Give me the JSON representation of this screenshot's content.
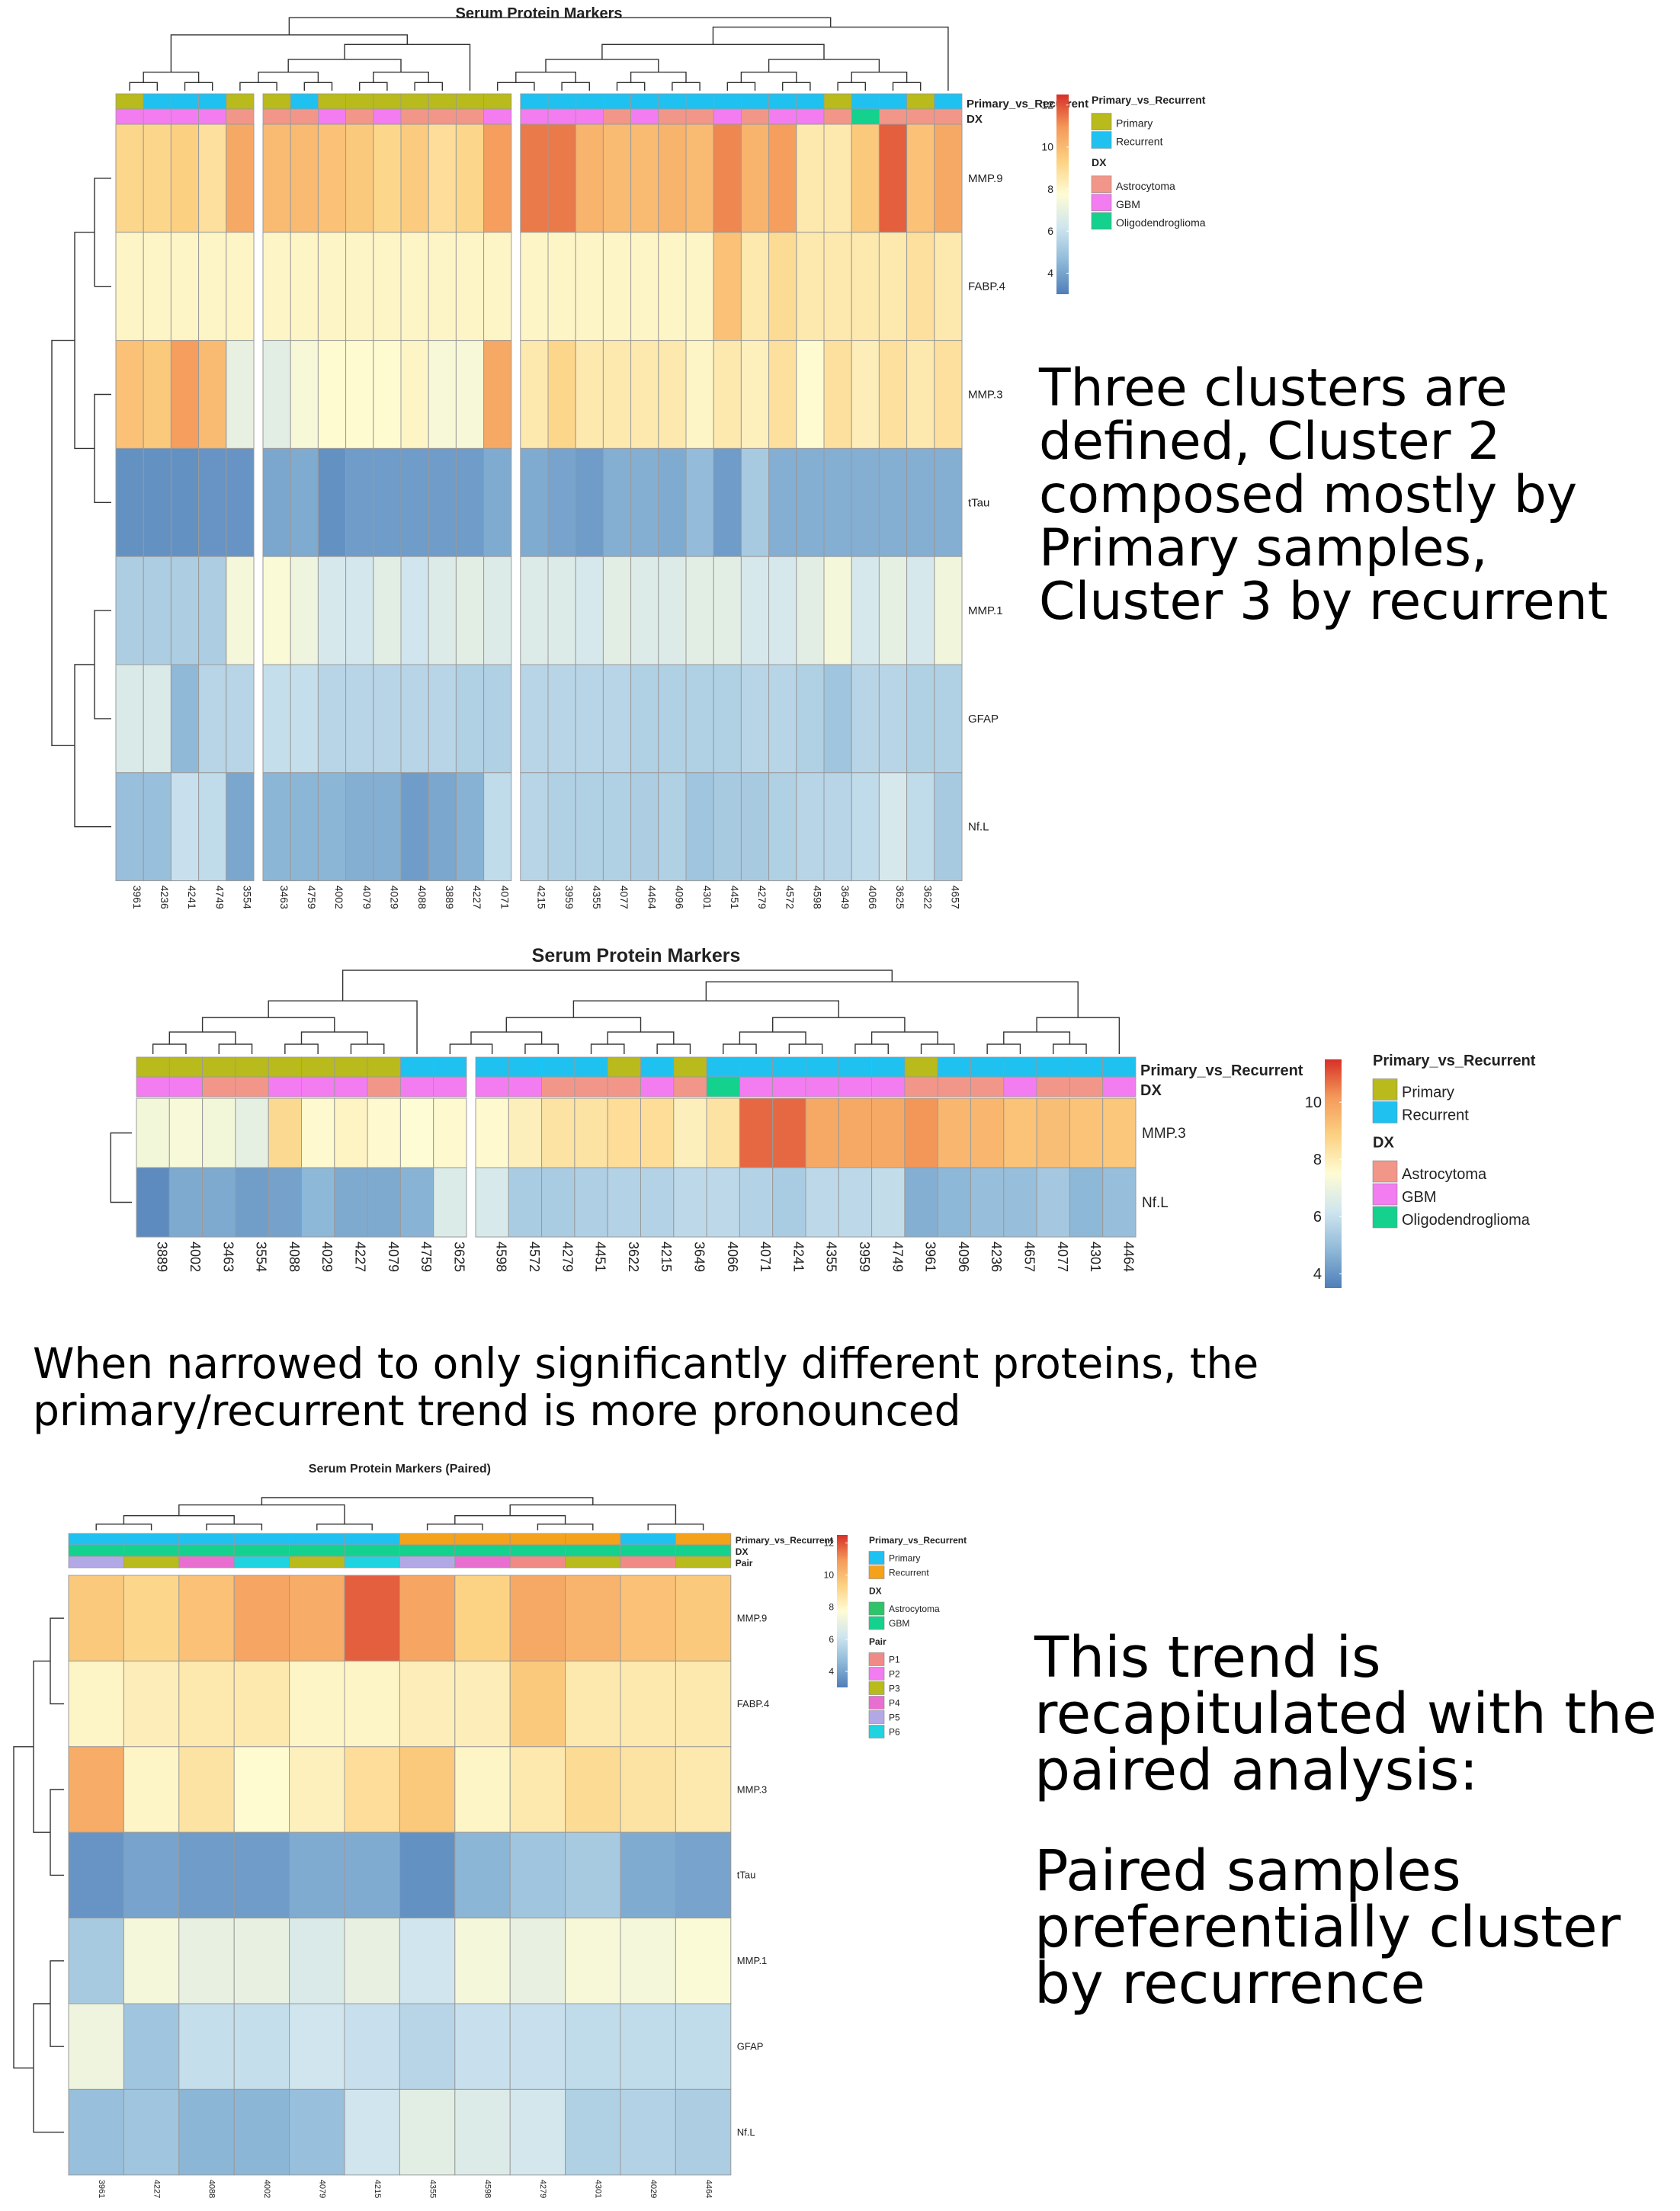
{
  "captions": {
    "top": "Three clusters are defined, Cluster 2 composed mostly by Primary samples, Cluster 3 by recurrent",
    "middle": "When narrowed to only significantly different proteins, the primary/recurrent trend is more pronounced",
    "bottom_1": "This trend is recapitulated with the paired analysis:",
    "bottom_2": "Paired samples preferentially cluster by recurrence"
  },
  "colors": {
    "primary": "#B9BA1B",
    "recurrent": "#1FC1F0",
    "recurrent_paired": "#F4A21A",
    "astrocytoma": "#F2968A",
    "gbm": "#F27CF0",
    "oligodendroglioma": "#14D18E",
    "astrocytoma_paired": "#2EC46A",
    "scale": [
      "#4F7EB8",
      "#8FB9D8",
      "#CFE5EF",
      "#FEFCD4",
      "#FCD283",
      "#F49A5A",
      "#D73027"
    ]
  },
  "chart_data": [
    {
      "type": "heatmap",
      "title": "Serum Protein Markers",
      "columns": [
        "3961",
        "4236",
        "4241",
        "4749",
        "3554",
        "3463",
        "4759",
        "4002",
        "4079",
        "4029",
        "4088",
        "3889",
        "4227",
        "4071",
        "4215",
        "3959",
        "4355",
        "4077",
        "4464",
        "4096",
        "4301",
        "4451",
        "4279",
        "4572",
        "4598",
        "3649",
        "4066",
        "3625",
        "3622",
        "4657"
      ],
      "rows": [
        "MMP.9",
        "FABP.4",
        "MMP.3",
        "tTau",
        "MMP.1",
        "GFAP",
        "Nf.L"
      ],
      "gaps_after_col": [
        4,
        13
      ],
      "annotations": {
        "Primary_vs_Recurrent": [
          "Primary",
          "Recurrent",
          "Recurrent",
          "Recurrent",
          "Primary",
          "Primary",
          "Recurrent",
          "Primary",
          "Primary",
          "Primary",
          "Primary",
          "Primary",
          "Primary",
          "Primary",
          "Recurrent",
          "Recurrent",
          "Recurrent",
          "Recurrent",
          "Recurrent",
          "Recurrent",
          "Recurrent",
          "Recurrent",
          "Recurrent",
          "Recurrent",
          "Recurrent",
          "Primary",
          "Recurrent",
          "Recurrent",
          "Primary",
          "Recurrent"
        ],
        "DX": [
          "GBM",
          "GBM",
          "GBM",
          "GBM",
          "Astrocytoma",
          "Astrocytoma",
          "Astrocytoma",
          "GBM",
          "Astrocytoma",
          "GBM",
          "Astrocytoma",
          "Astrocytoma",
          "Astrocytoma",
          "GBM",
          "GBM",
          "GBM",
          "GBM",
          "Astrocytoma",
          "GBM",
          "Astrocytoma",
          "Astrocytoma",
          "GBM",
          "Astrocytoma",
          "GBM",
          "GBM",
          "Astrocytoma",
          "Oligodendroglioma",
          "Astrocytoma",
          "Astrocytoma",
          "Astrocytoma"
        ]
      },
      "values": [
        [
          9.2,
          9.2,
          9.4,
          8.8,
          10.5,
          10.0,
          10.0,
          9.8,
          9.6,
          9.2,
          9.5,
          8.9,
          9.2,
          10.8,
          11.4,
          11.4,
          10.2,
          10.0,
          10.0,
          10.2,
          10.0,
          11.2,
          10.2,
          10.8,
          8.5,
          8.5,
          9.6,
          11.8,
          9.8,
          10.5
        ],
        [
          8.0,
          8.0,
          8.0,
          8.0,
          8.0,
          8.0,
          8.0,
          8.0,
          8.0,
          8.0,
          8.0,
          8.0,
          8.0,
          8.0,
          8.0,
          8.0,
          8.0,
          8.0,
          8.0,
          8.0,
          8.0,
          9.8,
          8.5,
          9.0,
          8.5,
          8.5,
          8.5,
          8.5,
          8.8,
          8.5
        ],
        [
          9.8,
          9.6,
          10.8,
          10.0,
          7.0,
          6.8,
          7.5,
          7.8,
          7.8,
          7.8,
          8.0,
          7.5,
          7.5,
          10.5,
          8.5,
          9.2,
          8.5,
          8.5,
          8.5,
          8.5,
          8.0,
          8.5,
          8.2,
          8.8,
          7.8,
          8.8,
          8.3,
          8.8,
          8.5,
          8.8
        ],
        [
          3.5,
          3.5,
          3.5,
          3.6,
          3.6,
          4.1,
          4.2,
          3.5,
          3.8,
          3.8,
          3.8,
          3.8,
          3.8,
          4.2,
          4.2,
          4.0,
          3.8,
          4.3,
          4.3,
          4.2,
          4.7,
          3.8,
          5.2,
          4.3,
          4.3,
          4.3,
          4.3,
          4.3,
          4.3,
          4.3
        ],
        [
          5.3,
          5.3,
          5.3,
          5.3,
          7.4,
          7.6,
          7.2,
          6.4,
          6.3,
          6.8,
          6.2,
          6.6,
          6.8,
          6.6,
          6.6,
          6.6,
          6.4,
          6.8,
          6.6,
          6.6,
          6.8,
          6.8,
          6.4,
          6.4,
          6.8,
          7.4,
          6.4,
          6.9,
          6.4,
          7.3
        ],
        [
          6.5,
          6.5,
          4.6,
          5.6,
          5.6,
          5.9,
          5.9,
          5.6,
          5.6,
          5.6,
          5.6,
          5.6,
          5.4,
          5.4,
          5.6,
          5.6,
          5.6,
          5.6,
          5.4,
          5.4,
          5.4,
          5.4,
          5.6,
          5.6,
          5.4,
          5.0,
          5.6,
          5.6,
          5.4,
          5.4
        ],
        [
          4.8,
          4.8,
          6.0,
          5.8,
          4.1,
          4.5,
          4.5,
          4.5,
          4.3,
          4.3,
          3.8,
          4.1,
          4.4,
          5.8,
          5.6,
          5.4,
          5.4,
          5.4,
          5.3,
          5.4,
          5.0,
          5.2,
          5.2,
          5.4,
          5.6,
          5.6,
          5.8,
          6.4,
          5.8,
          5.2
        ]
      ],
      "scale_ticks": [
        4,
        6,
        8,
        10,
        12
      ],
      "legend": {
        "Primary_vs_Recurrent": [
          "Primary",
          "Recurrent"
        ],
        "DX": [
          "Astrocytoma",
          "GBM",
          "Oligodendroglioma"
        ]
      }
    },
    {
      "type": "heatmap",
      "title": "Serum Protein Markers",
      "columns": [
        "3889",
        "4002",
        "3463",
        "3554",
        "4088",
        "4029",
        "4227",
        "4079",
        "4759",
        "3625",
        "4598",
        "4572",
        "4279",
        "4451",
        "3622",
        "4215",
        "3649",
        "4066",
        "4071",
        "4241",
        "4355",
        "3959",
        "4749",
        "3961",
        "4096",
        "4236",
        "4657",
        "4077",
        "4301",
        "4464"
      ],
      "rows": [
        "MMP.3",
        "Nf.L"
      ],
      "gaps_after_col": [
        9
      ],
      "annotations": {
        "Primary_vs_Recurrent": [
          "Primary",
          "Primary",
          "Primary",
          "Primary",
          "Primary",
          "Primary",
          "Primary",
          "Primary",
          "Recurrent",
          "Recurrent",
          "Recurrent",
          "Recurrent",
          "Recurrent",
          "Recurrent",
          "Primary",
          "Recurrent",
          "Primary",
          "Recurrent",
          "Recurrent",
          "Recurrent",
          "Recurrent",
          "Recurrent",
          "Recurrent",
          "Primary",
          "Recurrent",
          "Recurrent",
          "Recurrent",
          "Recurrent",
          "Recurrent",
          "Recurrent"
        ],
        "DX": [
          "GBM",
          "GBM",
          "Astrocytoma",
          "Astrocytoma",
          "GBM",
          "GBM",
          "GBM",
          "Astrocytoma",
          "GBM",
          "GBM",
          "GBM",
          "GBM",
          "Astrocytoma",
          "Astrocytoma",
          "Astrocytoma",
          "GBM",
          "Astrocytoma",
          "Oligodendroglioma",
          "GBM",
          "GBM",
          "GBM",
          "GBM",
          "GBM",
          "Astrocytoma",
          "Astrocytoma",
          "Astrocytoma",
          "GBM",
          "Astrocytoma",
          "Astrocytoma",
          "GBM"
        ]
      },
      "values": [
        [
          7.2,
          7.3,
          7.2,
          6.8,
          8.6,
          7.6,
          7.8,
          7.6,
          7.5,
          7.6,
          7.6,
          7.9,
          8.3,
          8.3,
          8.5,
          8.5,
          7.9,
          8.3,
          10.8,
          10.8,
          9.8,
          9.8,
          9.8,
          10.2,
          9.5,
          9.5,
          9.2,
          9.3,
          9.2,
          9.1
        ],
        [
          3.8,
          4.5,
          4.5,
          4.2,
          4.3,
          4.8,
          4.5,
          4.5,
          4.7,
          6.5,
          6.4,
          5.4,
          5.4,
          5.5,
          5.6,
          5.6,
          5.8,
          5.8,
          5.6,
          5.4,
          5.8,
          5.8,
          5.9,
          4.6,
          4.8,
          5.0,
          5.0,
          5.3,
          4.8,
          5.0
        ]
      ],
      "scale_ticks": [
        4,
        6,
        8,
        10
      ],
      "legend": {
        "Primary_vs_Recurrent": [
          "Primary",
          "Recurrent"
        ],
        "DX": [
          "Astrocytoma",
          "GBM",
          "Oligodendroglioma"
        ]
      }
    },
    {
      "type": "heatmap",
      "title": "Serum Protein Markers (Paired)",
      "columns": [
        "3961",
        "4227",
        "4088",
        "4002",
        "4079",
        "4215",
        "4355",
        "4598",
        "4279",
        "4301",
        "4029",
        "4464"
      ],
      "rows": [
        "MMP.9",
        "FABP.4",
        "MMP.3",
        "tTau",
        "MMP.1",
        "GFAP",
        "Nf.L"
      ],
      "gaps_after_col": [],
      "annotations": {
        "Primary_vs_Recurrent": [
          "Primary",
          "Primary",
          "Primary",
          "Primary",
          "Primary",
          "Primary",
          "Recurrent",
          "Recurrent",
          "Recurrent",
          "Recurrent",
          "Primary",
          "Recurrent"
        ],
        "DX": [
          "GBM",
          "GBM",
          "GBM",
          "GBM",
          "GBM",
          "GBM",
          "GBM",
          "GBM",
          "GBM",
          "GBM",
          "GBM",
          "GBM"
        ],
        "Pair": [
          "P5",
          "P3",
          "P4",
          "P6",
          "P3",
          "P6",
          "P5",
          "P4",
          "P1",
          "P3",
          "P1",
          "P3"
        ]
      },
      "values": [
        [
          9.6,
          9.2,
          9.8,
          10.6,
          10.4,
          11.8,
          10.6,
          9.3,
          10.5,
          10.2,
          9.8,
          9.6
        ],
        [
          8.0,
          8.3,
          8.5,
          8.5,
          8.0,
          8.0,
          8.3,
          8.3,
          9.6,
          8.5,
          8.5,
          8.5
        ],
        [
          10.4,
          8.0,
          8.7,
          7.8,
          8.2,
          8.9,
          9.6,
          8.0,
          8.5,
          9.0,
          8.7,
          8.5
        ],
        [
          3.6,
          4.0,
          3.8,
          3.8,
          4.2,
          4.2,
          3.5,
          4.5,
          5.0,
          5.2,
          4.2,
          4.0
        ],
        [
          5.2,
          7.4,
          7.0,
          7.0,
          6.5,
          7.0,
          6.2,
          7.4,
          7.0,
          7.5,
          7.4,
          7.6
        ],
        [
          7.2,
          5.0,
          5.9,
          5.9,
          6.2,
          6.0,
          5.6,
          6.0,
          6.0,
          5.8,
          5.8,
          5.8
        ],
        [
          4.8,
          5.0,
          4.5,
          4.5,
          4.8,
          6.2,
          6.8,
          6.6,
          6.3,
          5.4,
          5.5,
          5.3
        ]
      ],
      "scale_ticks": [
        4,
        6,
        8,
        10,
        12
      ],
      "legend": {
        "Primary_vs_Recurrent": [
          "Primary",
          "Recurrent"
        ],
        "DX": [
          "Astrocytoma",
          "GBM"
        ],
        "Pair": [
          "P1",
          "P2",
          "P3",
          "P4",
          "P5",
          "P6"
        ]
      }
    }
  ]
}
